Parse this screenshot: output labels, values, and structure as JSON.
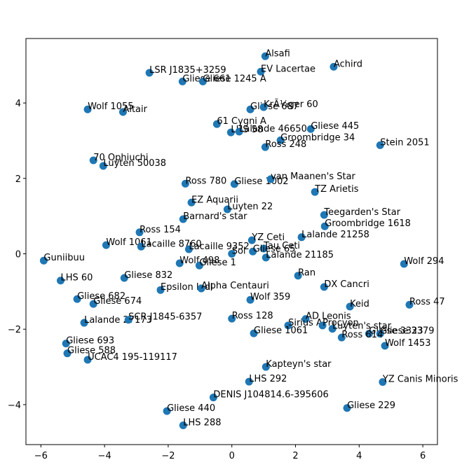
{
  "chart_data": {
    "type": "scatter",
    "color": "#1f77b4",
    "labels": [
      "Alsafi",
      "Achird",
      "LSR J1835+3259",
      "EV Lacertae",
      "Gliese 661",
      "Gliese 1245 A",
      "Wolf 1055",
      "Altair",
      "Gliese 687",
      "KrÃ¼ger 60",
      "61 Cygni A",
      "LHS 58",
      "Lalande 46650",
      "Gliese 445",
      "Groombridge 34",
      "Ross 248",
      "Stein 2051",
      "70 Ophiuchi",
      "Luyten 50038",
      "Ross 780",
      "Gliese 1002",
      "van Maanen's Star",
      "TZ Arietis",
      "EZ Aquarii",
      "Luyten 22",
      "Barnard's star",
      "Teegarden's Star",
      "Groombridge 1618",
      "Ross 154",
      "Lalande 21258",
      "YZ Ceti",
      "Wolf 1061",
      "Lacaille 8760",
      "Lacaille 9352",
      "Tau Ceti",
      "Gliese 65",
      "Sol",
      "Lalande 21185",
      "Guniibuu",
      "Wolf 498",
      "Gliese 1",
      "Wolf 294",
      "LHS 60",
      "Gliese 832",
      "Ran",
      "DX Cancri",
      "Epsilon Indi",
      "Alpha Centauri",
      "Gliese 682",
      "Gliese 674",
      "Wolf 359",
      "Keid",
      "Ross 47",
      "Lalande 27173",
      "SCR J1845-6357",
      "Ross 128",
      "AD Leonis",
      "Sirius A",
      "Procyon",
      "Luyten's star",
      "Gliese 1061",
      "Gliese 3323",
      "Gliese 3379",
      "Ross 614",
      "Wolf 1453",
      "Gliese 693",
      "Gliese 588",
      "UCAC4 195-119117",
      "Kapteyn's star",
      "LHS 292",
      "YZ Canis Minoris",
      "DENIS J104814.6-395606",
      "Gliese 229",
      "Gliese 440",
      "LHS 288"
    ],
    "x": [
      1.05,
      3.2,
      -2.59,
      0.91,
      -1.55,
      -0.91,
      -4.53,
      -3.42,
      0.58,
      1.0,
      -0.47,
      -0.03,
      0.23,
      2.48,
      1.53,
      1.05,
      4.66,
      -4.35,
      -4.04,
      -1.46,
      0.08,
      1.22,
      2.61,
      -1.27,
      -0.14,
      -1.53,
      2.9,
      2.92,
      -2.9,
      2.19,
      0.63,
      -3.95,
      -2.85,
      -1.35,
      1.0,
      0.66,
      0,
      1.07,
      -5.91,
      -1.64,
      -1.02,
      5.41,
      -5.38,
      -3.38,
      2.08,
      2.9,
      -2.24,
      -0.96,
      -4.86,
      -4.35,
      0.58,
      3.71,
      5.58,
      -4.64,
      -3.25,
      0,
      2.32,
      1.77,
      2.85,
      3.16,
      0.69,
      4.31,
      4.66,
      3.45,
      4.81,
      -5.21,
      -5.17,
      -4.53,
      1.07,
      0.54,
      4.74,
      -0.58,
      3.62,
      -2.04,
      -1.53
    ],
    "values": [
      5.24,
      4.96,
      4.8,
      4.83,
      4.57,
      4.57,
      3.83,
      3.76,
      3.83,
      3.89,
      3.44,
      3.22,
      3.24,
      3.31,
      3.01,
      2.83,
      2.88,
      2.48,
      2.33,
      1.86,
      1.85,
      1.98,
      1.64,
      1.36,
      1.18,
      0.92,
      1.03,
      0.73,
      0.57,
      0.44,
      0.36,
      0.23,
      0.19,
      0.12,
      0.14,
      0.06,
      0,
      -0.1,
      -0.18,
      -0.25,
      -0.31,
      -0.27,
      -0.71,
      -0.64,
      -0.58,
      -0.88,
      -0.96,
      -0.92,
      -1.2,
      -1.33,
      -1.22,
      -1.4,
      -1.35,
      -1.83,
      -1.75,
      -1.72,
      -1.73,
      -1.9,
      -1.9,
      -1.99,
      -2.11,
      -2.12,
      -2.12,
      -2.22,
      -2.44,
      -2.38,
      -2.64,
      -2.81,
      -3.0,
      -3.39,
      -3.4,
      -3.81,
      -4.09,
      -4.17,
      -4.55
    ],
    "xlim": [
      -6.47,
      6.46
    ],
    "ylim": [
      -5.06,
      5.71
    ],
    "xticks": [
      {
        "value": -6,
        "label": "−6"
      },
      {
        "value": -4,
        "label": "−4"
      },
      {
        "value": -2,
        "label": "−2"
      },
      0,
      2,
      4,
      6
    ],
    "yticks": [
      {
        "value": -4,
        "label": "−4"
      },
      {
        "value": -2,
        "label": "−2"
      },
      0,
      2,
      4
    ]
  }
}
